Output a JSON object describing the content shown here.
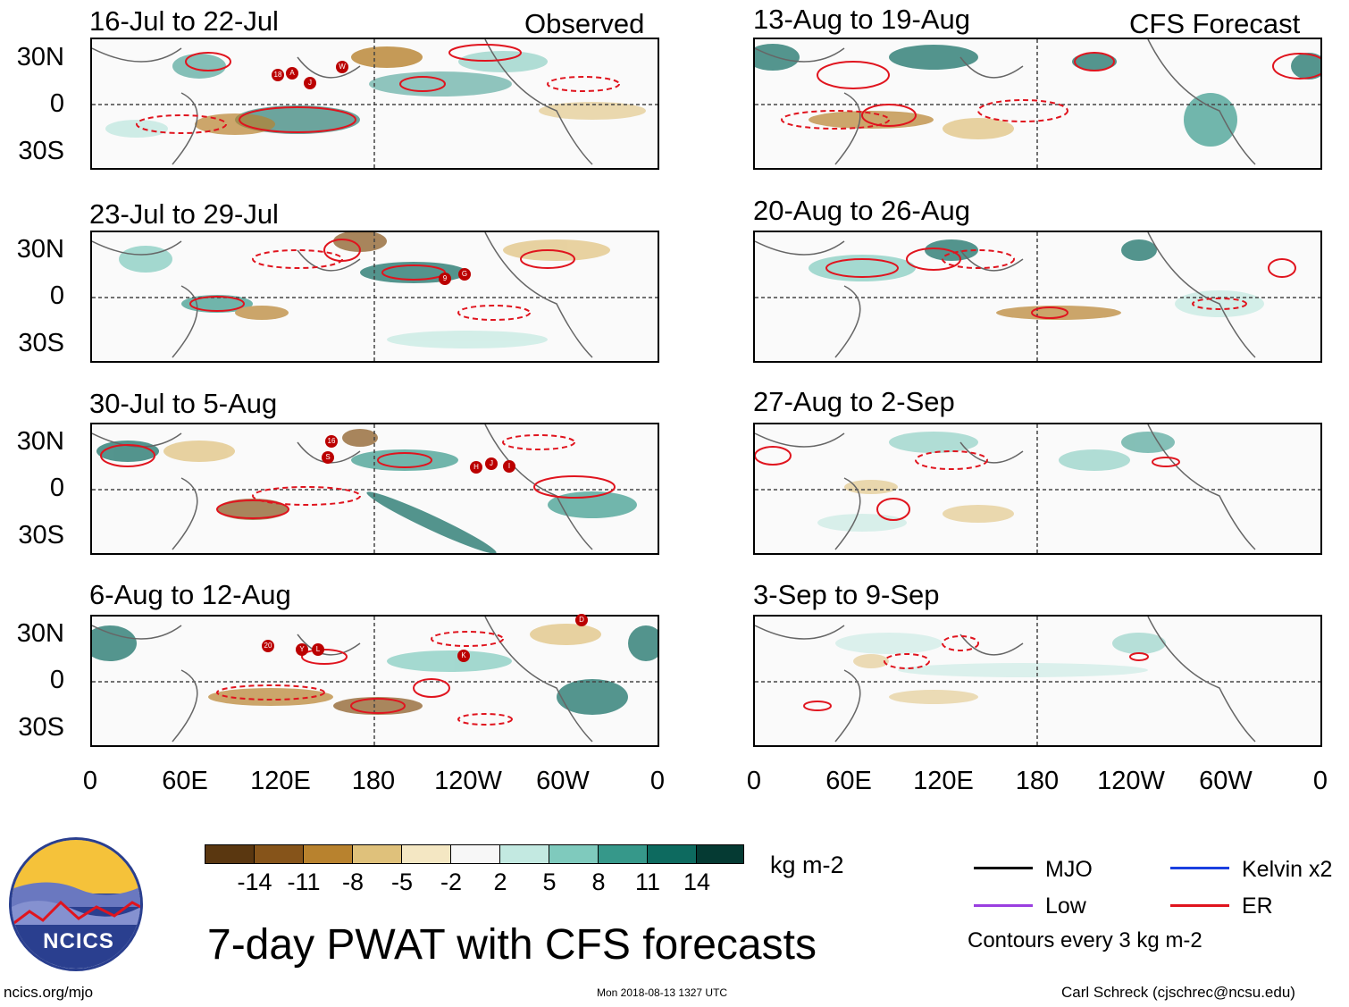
{
  "header": {
    "observed_label": "Observed",
    "forecast_label": "CFS Forecast"
  },
  "observed_panels": [
    {
      "title": "16-Jul to 22-Jul"
    },
    {
      "title": "23-Jul to 29-Jul"
    },
    {
      "title": "30-Jul to 5-Aug"
    },
    {
      "title": "6-Aug to 12-Aug"
    }
  ],
  "forecast_panels": [
    {
      "title": "13-Aug to 19-Aug"
    },
    {
      "title": "20-Aug to 26-Aug"
    },
    {
      "title": "27-Aug to 2-Sep"
    },
    {
      "title": "3-Sep to 9-Sep"
    }
  ],
  "axes": {
    "lat_labels": [
      "30N",
      "0",
      "30S"
    ],
    "lon_labels": [
      "0",
      "60E",
      "120E",
      "180",
      "120W",
      "60W",
      "0"
    ]
  },
  "storms": {
    "p1": [
      "18",
      "A",
      "J",
      "W"
    ],
    "p2": [
      "9",
      "G"
    ],
    "p3": [
      "16",
      "S",
      "H",
      "J",
      "I"
    ],
    "p4": [
      "20",
      "Y",
      "L",
      "K",
      "D"
    ]
  },
  "colorbar": {
    "labels": [
      "-14",
      "-11",
      "-8",
      "-5",
      "-2",
      "2",
      "5",
      "8",
      "11",
      "14"
    ],
    "colors": [
      "#5a3710",
      "#86541a",
      "#b8822e",
      "#dfc17b",
      "#f4e7c3",
      "#f7f7f7",
      "#c3e9e1",
      "#7fcabd",
      "#36988a",
      "#0d6a5f",
      "#053a33"
    ],
    "units": "kg m-2"
  },
  "legend": {
    "items": [
      {
        "label": "MJO",
        "color": "#000000"
      },
      {
        "label": "Kelvin x2",
        "color": "#1a3fe0"
      },
      {
        "label": "Low",
        "color": "#9a3fe0"
      },
      {
        "label": "ER",
        "color": "#e0141e"
      }
    ],
    "note": "Contours every 3 kg m-2"
  },
  "logo": {
    "text": "NCICS"
  },
  "title": "7-day PWAT with CFS forecasts",
  "footer": {
    "url": "ncics.org/mjo",
    "timestamp": "Mon 2018-08-13 1327 UTC",
    "credit": "Carl Schreck (cjschrec@ncsu.edu)"
  }
}
